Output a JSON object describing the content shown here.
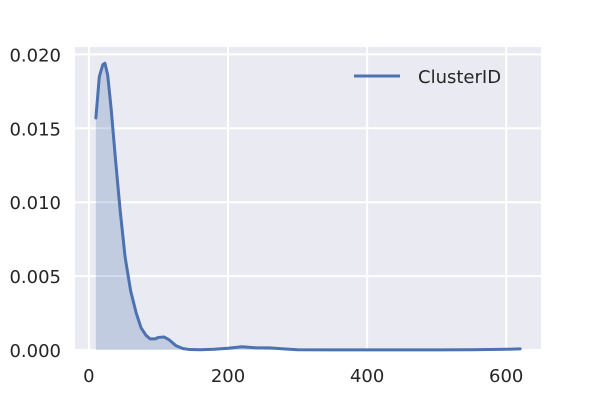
{
  "chart_data": {
    "type": "area",
    "title": "",
    "xlabel": "",
    "ylabel": "",
    "xlim": [
      -20,
      650
    ],
    "ylim": [
      0,
      0.0205
    ],
    "x_ticks": [
      0,
      200,
      400,
      600
    ],
    "x_tick_labels": [
      "0",
      "200",
      "400",
      "600"
    ],
    "y_ticks": [
      0.0,
      0.005,
      0.01,
      0.015,
      0.02
    ],
    "y_tick_labels": [
      "0.000",
      "0.005",
      "0.010",
      "0.015",
      "0.020"
    ],
    "grid": true,
    "legend": {
      "position": "top-right",
      "entries": [
        "ClusterID"
      ]
    },
    "series": [
      {
        "name": "ClusterID",
        "color": "#4c72b0",
        "fill": "#4c72b0",
        "fill_opacity": 0.25,
        "x": [
          10,
          15,
          20,
          23,
          27,
          32,
          38,
          45,
          52,
          60,
          68,
          75,
          82,
          88,
          95,
          100,
          108,
          115,
          125,
          135,
          145,
          160,
          180,
          200,
          220,
          240,
          260,
          280,
          300,
          350,
          400,
          450,
          500,
          550,
          600,
          620
        ],
        "y": [
          0.0157,
          0.0185,
          0.0193,
          0.0194,
          0.0186,
          0.0163,
          0.013,
          0.0094,
          0.0063,
          0.004,
          0.0025,
          0.0015,
          0.001,
          0.00075,
          0.00075,
          0.00085,
          0.00088,
          0.0007,
          0.0003,
          0.0001,
          3e-05,
          2e-05,
          5e-05,
          0.00012,
          0.00022,
          0.00015,
          0.00014,
          8e-05,
          2e-05,
          1e-05,
          1e-05,
          1e-05,
          1e-05,
          2e-05,
          5e-05,
          8e-05
        ]
      }
    ]
  },
  "colors": {
    "plot_background": "#eaeaf2",
    "grid": "#ffffff",
    "line": "#4c72b0"
  }
}
